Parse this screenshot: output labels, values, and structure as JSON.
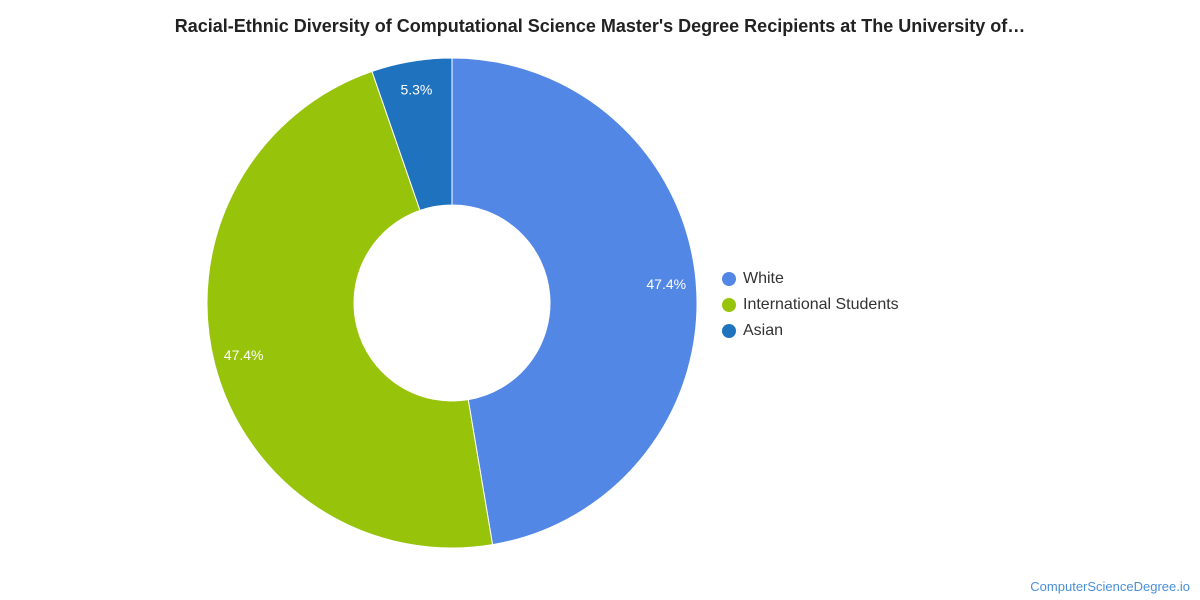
{
  "chart_data": {
    "type": "pie",
    "title": "Racial-Ethnic Diversity of Computational Science Master's Degree Recipients at The University of…",
    "categories": [
      "White",
      "International Students",
      "Asian"
    ],
    "values": [
      47.4,
      47.4,
      5.3
    ],
    "labels": [
      "47.4%",
      "47.4%",
      "5.3%"
    ],
    "colors": [
      "#5387e5",
      "#97c40a",
      "#1f73be"
    ],
    "donut": true,
    "legend_position": "right"
  },
  "watermark": "ComputerScienceDegree.io"
}
